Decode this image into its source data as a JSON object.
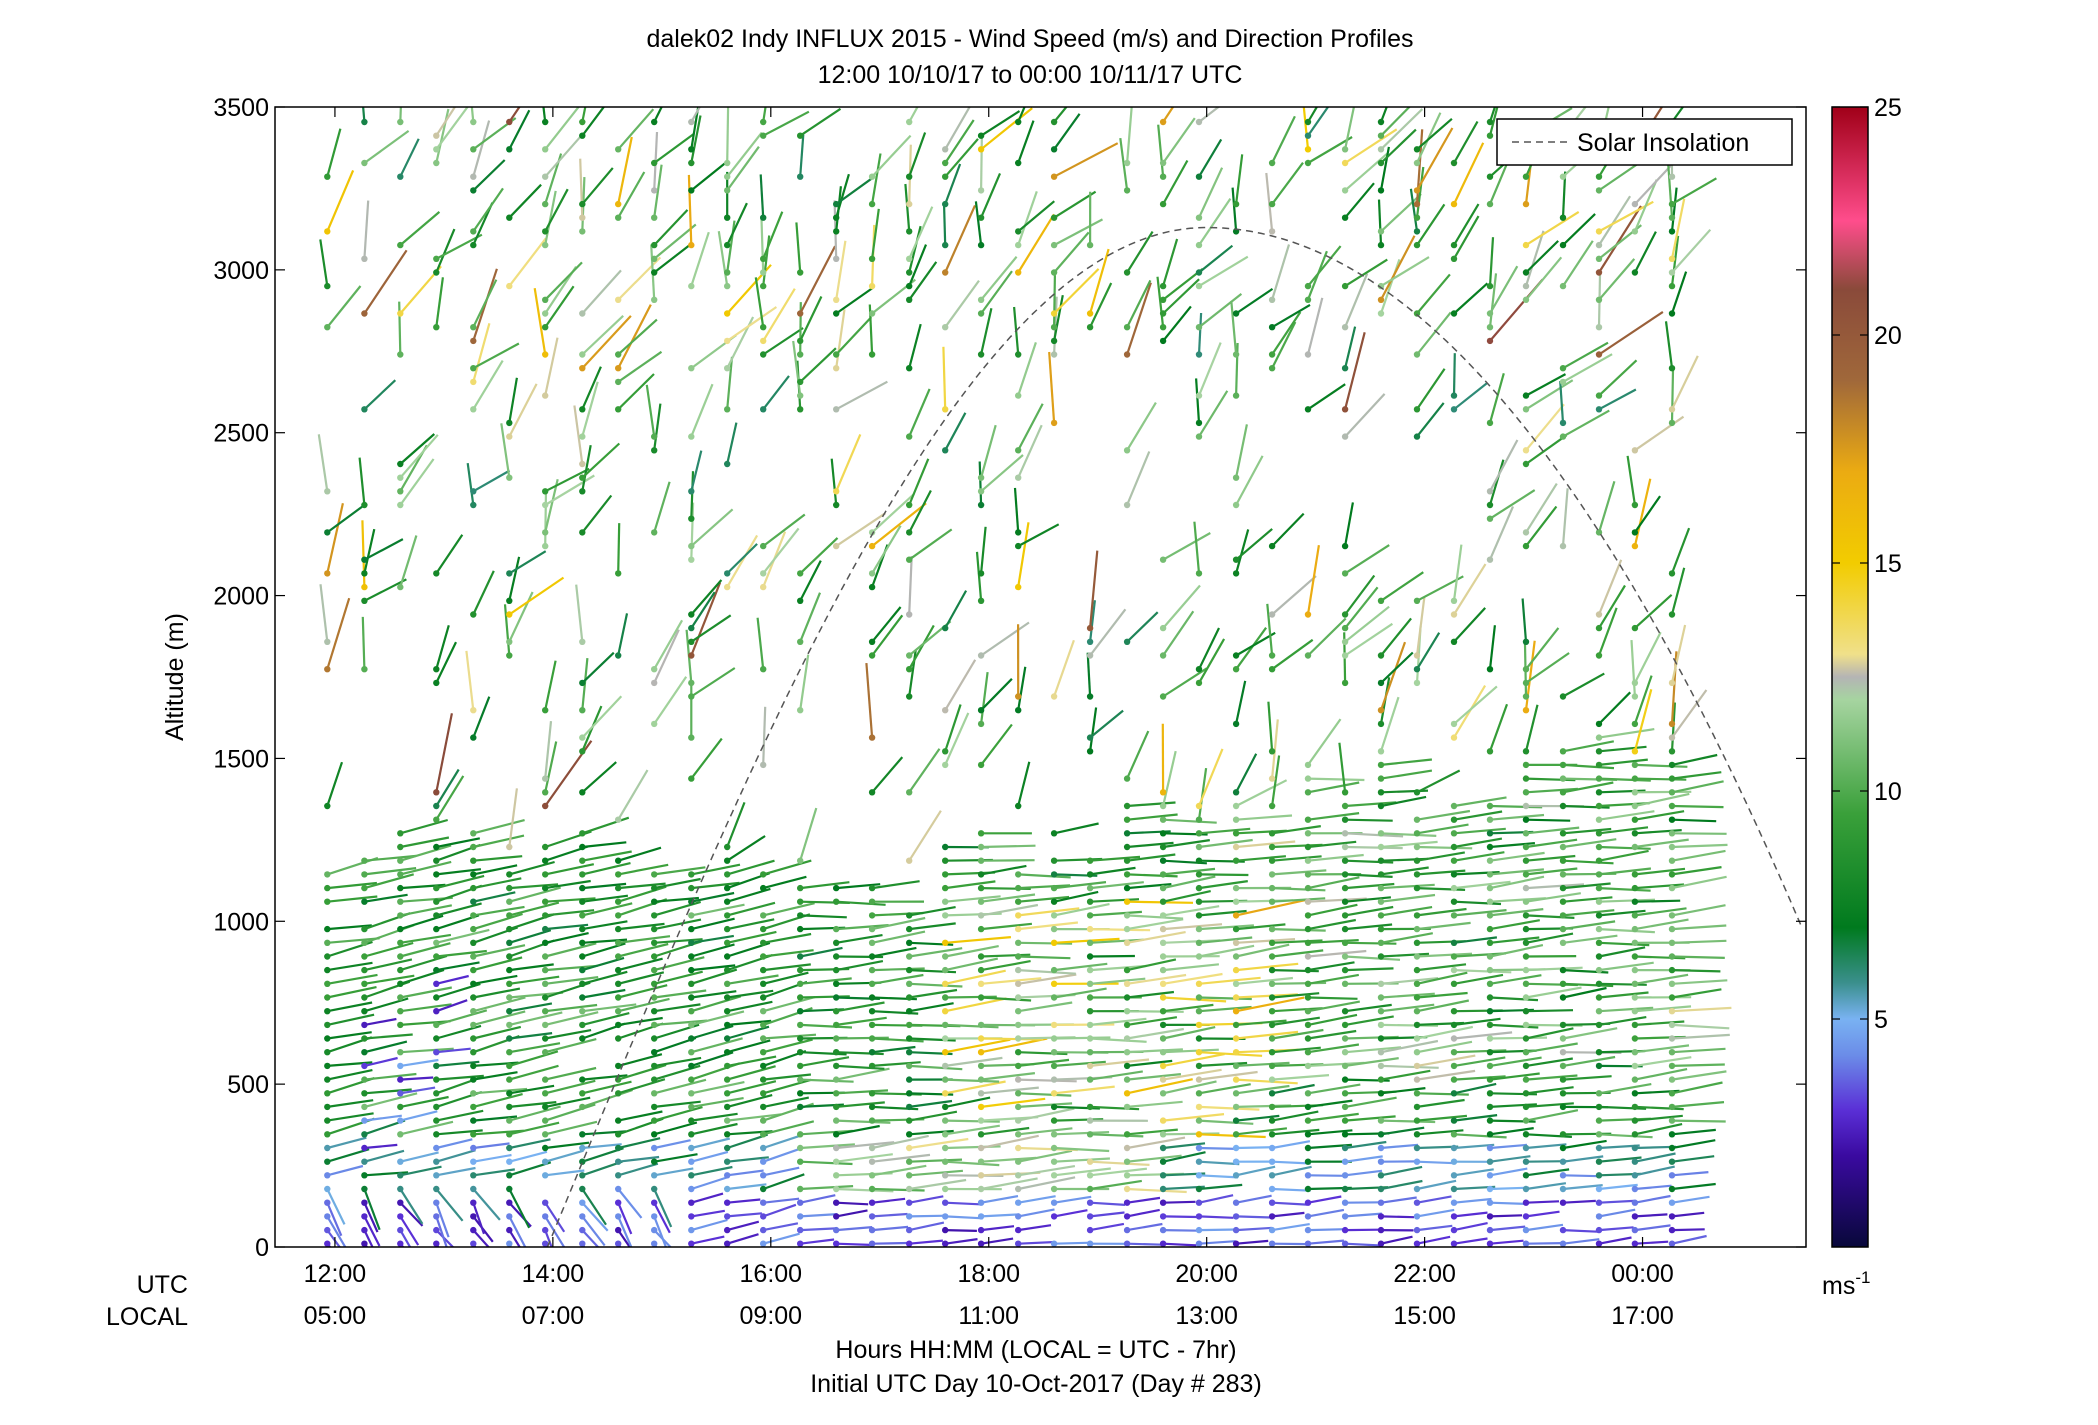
{
  "chart_data": {
    "type": "wind-barb-profile",
    "title": "dalek02 Indy INFLUX 2015 - Wind Speed (m/s) and Direction Profiles",
    "subtitle": "12:00 10/10/17 to 00:00 10/11/17  UTC",
    "ylabel": "Altitude (m)",
    "xlabel": "Hours HH:MM  (LOCAL = UTC - 7hr)",
    "xlabel2": "Initial UTC Day 10-Oct-2017 (Day # 283)",
    "x_row_labels": [
      "UTC",
      "LOCAL"
    ],
    "ylim": [
      0,
      3500
    ],
    "xlim_hours": [
      11.45,
      25.5
    ],
    "yticks": [
      0,
      500,
      1000,
      1500,
      2000,
      2500,
      3000,
      3500
    ],
    "ytick_labels": [
      "0",
      "500",
      "1000",
      "1500",
      "2000",
      "2500",
      "3000",
      "3500"
    ],
    "xticks_hours": [
      12,
      14,
      16,
      18,
      20,
      22,
      24
    ],
    "xtick_labels_utc": [
      "12:00",
      "14:00",
      "16:00",
      "18:00",
      "20:00",
      "22:00",
      "00:00"
    ],
    "xtick_labels_local": [
      "05:00",
      "07:00",
      "09:00",
      "11:00",
      "13:00",
      "15:00",
      "17:00"
    ],
    "legend": {
      "label": "Solar Insolation",
      "position": "top-right"
    },
    "solar_insolation": {
      "start_hour": 13.95,
      "peak_hour": 20.0,
      "peak_altitude": 3130,
      "end_hour": 25.45,
      "end_altitude": 990
    },
    "colorbar": {
      "min": 0,
      "max": 25,
      "ticks": [
        5,
        10,
        15,
        20,
        25
      ],
      "tick_labels": [
        "5",
        "10",
        "15",
        "20",
        "25"
      ],
      "unit": "ms",
      "unit_sup": "-1",
      "stops": [
        {
          "v": 0,
          "color": "#08083a"
        },
        {
          "v": 2,
          "color": "#3a0aa0"
        },
        {
          "v": 3,
          "color": "#5a2fd6"
        },
        {
          "v": 4.2,
          "color": "#6b8ce8"
        },
        {
          "v": 5,
          "color": "#79b2f2"
        },
        {
          "v": 5.8,
          "color": "#3a8f8c"
        },
        {
          "v": 7,
          "color": "#007a1e"
        },
        {
          "v": 9.5,
          "color": "#3aa03a"
        },
        {
          "v": 12,
          "color": "#a6d4a0"
        },
        {
          "v": 12.5,
          "color": "#b4b4b4"
        },
        {
          "v": 13,
          "color": "#f0e08a"
        },
        {
          "v": 15,
          "color": "#f2cc00"
        },
        {
          "v": 17,
          "color": "#ebab12"
        },
        {
          "v": 19,
          "color": "#a0683a"
        },
        {
          "v": 21,
          "color": "#8a4a3a"
        },
        {
          "v": 22.5,
          "color": "#ff4d8c"
        },
        {
          "v": 25,
          "color": "#a00018"
        }
      ]
    },
    "profile_times_hours": [
      11.93,
      12.27,
      12.6,
      12.93,
      13.27,
      13.6,
      13.93,
      14.27,
      14.6,
      14.93,
      15.27,
      15.6,
      15.93,
      16.27,
      16.6,
      16.93,
      17.27,
      17.6,
      17.93,
      18.27,
      18.6,
      18.93,
      19.27,
      19.6,
      19.93,
      20.27,
      20.6,
      20.93,
      21.27,
      21.6,
      21.93,
      22.27,
      22.6,
      22.93,
      23.27,
      23.6,
      23.93,
      24.27
    ],
    "barb_style": "colored dot at (time, altitude) with a line pointing along the wind direction; color encodes speed (m/s)"
  }
}
